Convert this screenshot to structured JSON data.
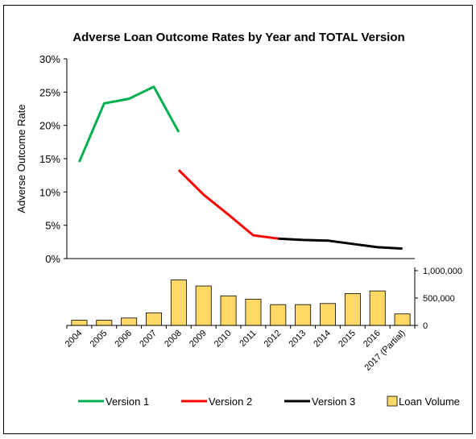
{
  "chart_data": {
    "type": "line",
    "title": "Adverse Loan Outcome Rates by Year and TOTAL Version",
    "ylabel": "Adverse Outcome Rate",
    "categories": [
      "2004",
      "2005",
      "2006",
      "2007",
      "2008",
      "2009",
      "2010",
      "2011",
      "2012",
      "2013",
      "2014",
      "2015",
      "2016",
      "2017 (Partial)"
    ],
    "rate_axis": {
      "ylim": [
        0,
        30
      ],
      "ticks": [
        "0%",
        "5%",
        "10%",
        "15%",
        "20%",
        "25%",
        "30%"
      ]
    },
    "volume_axis": {
      "ylim": [
        0,
        1000000
      ],
      "ticks": [
        "0",
        "500,000",
        "1,000,000"
      ]
    },
    "grid": false,
    "legend_position": "bottom",
    "series": [
      {
        "name": "Version 1",
        "kind": "line",
        "color": "#00b050",
        "values": [
          14.5,
          23.3,
          24.0,
          25.8,
          19.0,
          null,
          null,
          null,
          null,
          null,
          null,
          null,
          null,
          null
        ]
      },
      {
        "name": "Version 2",
        "kind": "line",
        "color": "#ff0000",
        "values": [
          null,
          null,
          null,
          null,
          13.3,
          9.6,
          6.6,
          3.5,
          3.0,
          null,
          null,
          null,
          null,
          null
        ]
      },
      {
        "name": "Version 3",
        "kind": "line",
        "color": "#000000",
        "values": [
          null,
          null,
          null,
          null,
          null,
          null,
          null,
          null,
          3.0,
          2.8,
          2.7,
          2.2,
          1.7,
          1.5
        ]
      },
      {
        "name": "Loan Volume",
        "kind": "bar",
        "color": "#ffd966",
        "values": [
          95000,
          95000,
          135000,
          230000,
          830000,
          720000,
          540000,
          480000,
          380000,
          380000,
          400000,
          580000,
          630000,
          210000
        ]
      }
    ]
  }
}
